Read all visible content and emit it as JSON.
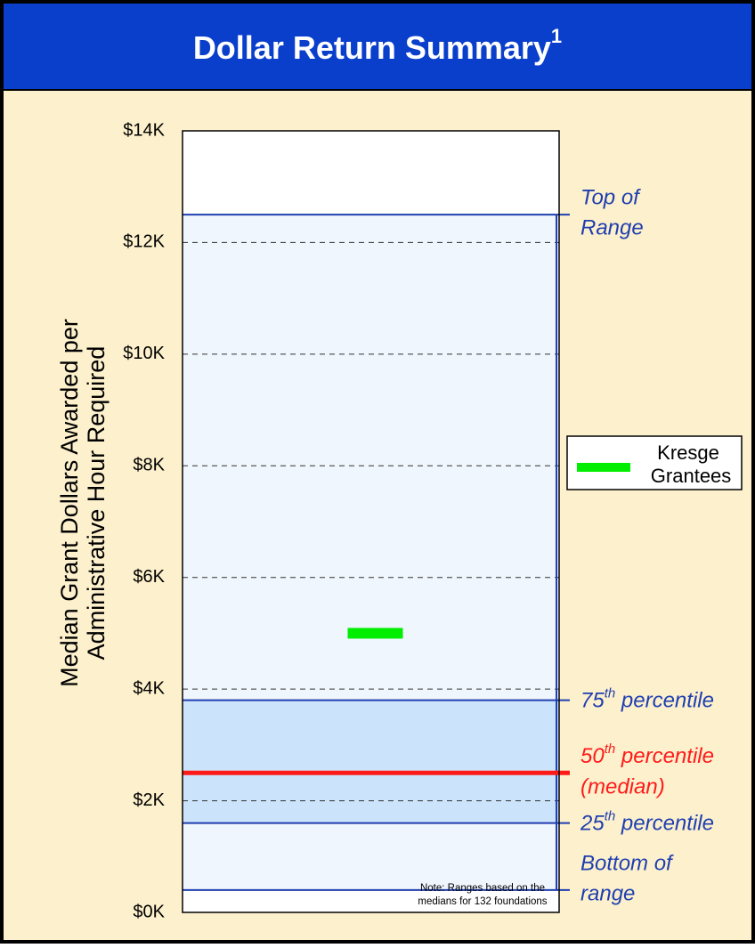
{
  "chart_data": {
    "type": "range",
    "title": "Dollar Return Summary",
    "title_footnote_mark": "1",
    "y_label_lines": [
      "Median Grant Dollars Awarded per",
      "Administrative Hour Required"
    ],
    "ylim": [
      0,
      14000
    ],
    "yticks": [
      {
        "value": 0,
        "label": "$0K"
      },
      {
        "value": 2000,
        "label": "$2K"
      },
      {
        "value": 4000,
        "label": "$4K"
      },
      {
        "value": 6000,
        "label": "$6K"
      },
      {
        "value": 8000,
        "label": "$8K"
      },
      {
        "value": 10000,
        "label": "$10K"
      },
      {
        "value": 12000,
        "label": "$12K"
      },
      {
        "value": 14000,
        "label": "$14K"
      }
    ],
    "grid": true,
    "outer_fill": "#f0f6fd",
    "inner_fill": "#cce4fb",
    "levels": [
      {
        "value": 12500,
        "color": "#1f3fb0",
        "lines": [
          "Top of",
          "Range"
        ]
      },
      {
        "value": 3800,
        "color": "#1f3fb0",
        "lines": [
          "75th percentile"
        ]
      },
      {
        "value": 2500,
        "color": "#ff1a1a",
        "lines": [
          "50th percentile",
          "(median)"
        ]
      },
      {
        "value": 1600,
        "color": "#1f3fb0",
        "lines": [
          "25th percentile"
        ]
      },
      {
        "value": 400,
        "color": "#1f3fb0",
        "lines": [
          "Bottom of",
          "range"
        ]
      }
    ],
    "series": [
      {
        "name": "Kresge Grantees",
        "color": "#00ee00",
        "values": [
          5000
        ]
      }
    ],
    "note_lines": [
      "Note: Ranges based on the",
      "medians for 132 foundations"
    ]
  }
}
